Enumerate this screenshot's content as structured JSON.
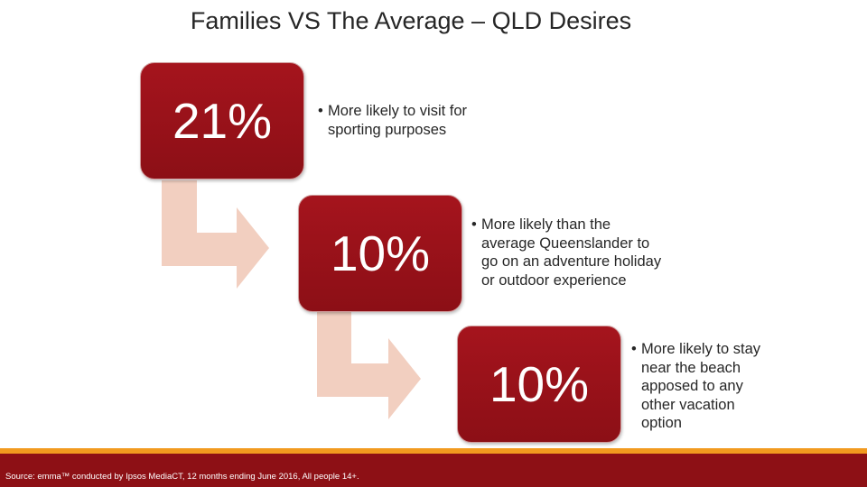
{
  "slide": {
    "title": "Families VS The Average – QLD Desires",
    "steps": [
      {
        "value": "21%",
        "text": "More likely to visit for sporting purposes",
        "lines": [
          "More likely to visit for",
          "sporting purposes"
        ]
      },
      {
        "value": "10%",
        "text": "More likely than the average Queenslander to go on an adventure holiday or outdoor experience",
        "lines": [
          "More likely than the",
          "average Queenslander to",
          "go on an adventure holiday",
          "or outdoor experience"
        ]
      },
      {
        "value": "10%",
        "text": "More likely to stay near the beach apposed to any other vacation option",
        "lines": [
          "More likely to stay",
          "near the beach",
          "apposed to any",
          "other vacation",
          "option"
        ]
      }
    ],
    "bullet_symbol": "•",
    "source": "Source: emma™ conducted by Ipsos MediaCT, 12 months ending June 2016, All people 14+.",
    "colors": {
      "box": "#9b111a",
      "arrow": "#f2cfc0",
      "footer_band": "#8d1015",
      "footer_stripe": "#f29a1f"
    }
  }
}
